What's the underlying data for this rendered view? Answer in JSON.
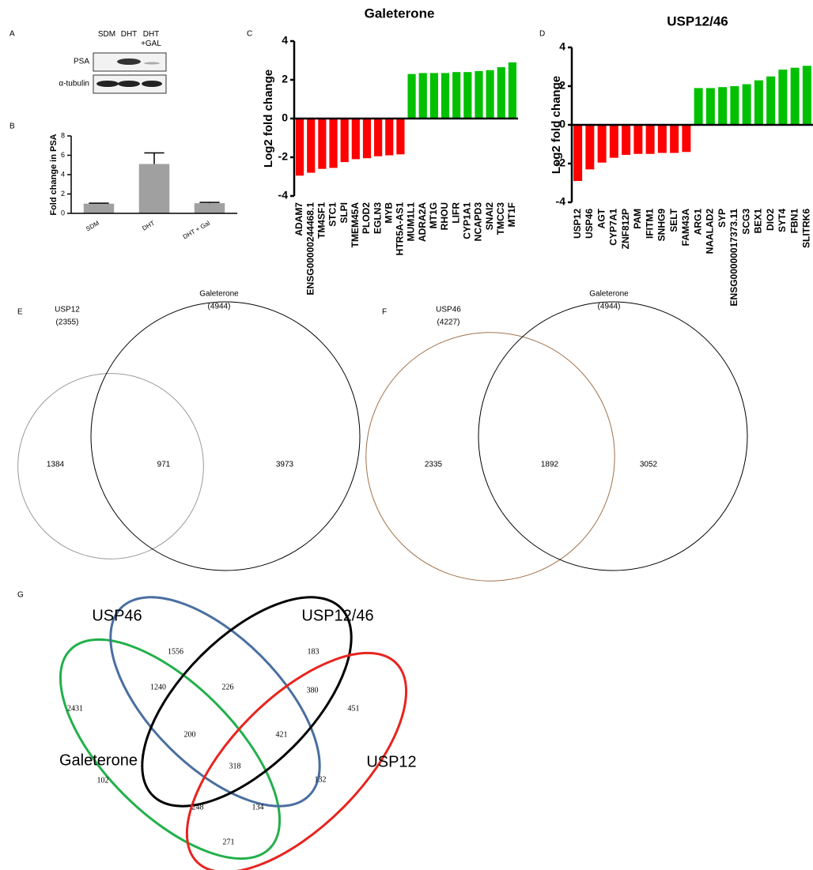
{
  "blot": {
    "panel": "A",
    "lanes": [
      "SDM",
      "DHT",
      "DHT +GAL"
    ],
    "rows": [
      "PSA",
      "α-tubulin"
    ]
  },
  "chart_data": [
    {
      "type": "bar",
      "panel": "B",
      "y_label": "Fold change in PSA",
      "categories": [
        "SDM",
        "DHT",
        "DHT + Gal"
      ],
      "values": [
        1.0,
        5.1,
        1.05
      ],
      "errors": [
        0.05,
        1.15,
        0.08
      ],
      "color": "#a0a0a0",
      "ylim": [
        0,
        8
      ],
      "yticks": [
        0,
        2,
        4,
        6,
        8
      ]
    },
    {
      "type": "bar",
      "panel": "C",
      "title": "Galeterone",
      "y_label": "Log2 fold change",
      "categories": [
        "ADAM7",
        "ENSG00000244468.1",
        "TM4SF1",
        "STC1",
        "SLPI",
        "TMEM45A",
        "PLOD2",
        "EGLN3",
        "MYB",
        "HTR5A-AS1",
        "MUM1L1",
        "ADRA2A",
        "MT1G",
        "RHOU",
        "LIFR",
        "CYP1A1",
        "NCAPD3",
        "SNAI2",
        "TMCC3",
        "MT1F"
      ],
      "values": [
        -2.95,
        -2.8,
        -2.6,
        -2.55,
        -2.25,
        -2.1,
        -2.05,
        -1.95,
        -1.9,
        -1.85,
        2.3,
        2.35,
        2.35,
        2.35,
        2.4,
        2.4,
        2.45,
        2.5,
        2.65,
        2.9
      ],
      "negative_color": "#ff0000",
      "positive_color": "#00c000",
      "ylim": [
        -4,
        4
      ],
      "yticks": [
        -4,
        -2,
        0,
        2,
        4
      ]
    },
    {
      "type": "bar",
      "panel": "D",
      "title": "USP12/46",
      "y_label": "Log2 fold change",
      "categories": [
        "USP12",
        "USP46",
        "AGT",
        "CYP7A1",
        "ZNF812P",
        "PAM",
        "IFITM1",
        "SNHG9",
        "SELT",
        "FAM43A",
        "ARG1",
        "NAALAD2",
        "SYP",
        "ENSG00000017373.11",
        "SCG3",
        "BEX1",
        "DIO2",
        "SYT4",
        "FBN1",
        "SLITRK6"
      ],
      "values": [
        -2.9,
        -2.3,
        -1.95,
        -1.7,
        -1.55,
        -1.5,
        -1.5,
        -1.45,
        -1.45,
        -1.4,
        1.9,
        1.9,
        1.95,
        2.0,
        2.1,
        2.3,
        2.5,
        2.85,
        2.95,
        3.05
      ],
      "negative_color": "#ff0000",
      "positive_color": "#00c000",
      "ylim": [
        -4,
        4
      ],
      "yticks": [
        -4,
        -2,
        0,
        2,
        4
      ]
    },
    {
      "type": "venn2",
      "panel": "E",
      "sets": [
        {
          "name": "USP12",
          "size": 2355,
          "size_label": "(2355)",
          "color": "#999999"
        },
        {
          "name": "Galeterone",
          "size": 4944,
          "size_label": "(4944)",
          "color": "#000000"
        }
      ],
      "regions": [
        1384,
        971,
        3973
      ]
    },
    {
      "type": "venn2",
      "panel": "F",
      "sets": [
        {
          "name": "USP46",
          "size": 4227,
          "size_label": "(4227)",
          "color": "#a0714a"
        },
        {
          "name": "Galeterone",
          "size": 4944,
          "size_label": "(4944)",
          "color": "#000000"
        }
      ],
      "regions": [
        2335,
        1892,
        3052
      ]
    },
    {
      "type": "venn4",
      "panel": "G",
      "sets": [
        {
          "name": "Galeterone",
          "color": "#22b04b"
        },
        {
          "name": "USP46",
          "color": "#4a6fa0"
        },
        {
          "name": "USP12/46",
          "color": "#000000"
        },
        {
          "name": "USP12",
          "color": "#e8241f"
        }
      ],
      "regions": [
        1556,
        183,
        2431,
        451,
        1240,
        226,
        380,
        200,
        421,
        318,
        102,
        132,
        248,
        134,
        271
      ]
    }
  ]
}
